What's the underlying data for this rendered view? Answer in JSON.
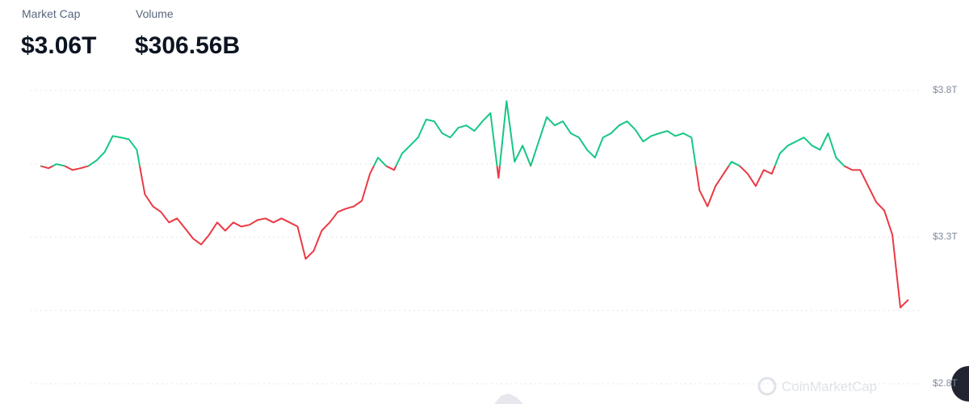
{
  "stats": [
    {
      "label": "Market Cap",
      "value": "$3.06T"
    },
    {
      "label": "Volume",
      "value": "$306.56B"
    }
  ],
  "watermark": "CoinMarketCap",
  "chart_data": {
    "type": "line",
    "values": [
      3.543,
      3.535,
      3.549,
      3.543,
      3.529,
      3.535,
      3.543,
      3.562,
      3.59,
      3.645,
      3.64,
      3.634,
      3.598,
      3.446,
      3.405,
      3.386,
      3.35,
      3.364,
      3.33,
      3.295,
      3.275,
      3.308,
      3.35,
      3.322,
      3.35,
      3.336,
      3.342,
      3.358,
      3.364,
      3.35,
      3.364,
      3.35,
      3.336,
      3.226,
      3.253,
      3.322,
      3.35,
      3.386,
      3.397,
      3.405,
      3.424,
      3.516,
      3.571,
      3.543,
      3.529,
      3.585,
      3.612,
      3.64,
      3.701,
      3.695,
      3.654,
      3.64,
      3.673,
      3.681,
      3.662,
      3.695,
      3.723,
      3.502,
      3.764,
      3.557,
      3.612,
      3.543,
      3.626,
      3.709,
      3.681,
      3.695,
      3.654,
      3.64,
      3.598,
      3.571,
      3.64,
      3.654,
      3.681,
      3.695,
      3.667,
      3.626,
      3.645,
      3.654,
      3.662,
      3.645,
      3.654,
      3.64,
      3.46,
      3.405,
      3.474,
      3.516,
      3.557,
      3.543,
      3.516,
      3.474,
      3.529,
      3.516,
      3.585,
      3.612,
      3.626,
      3.64,
      3.612,
      3.598,
      3.654,
      3.571,
      3.543,
      3.529,
      3.529,
      3.474,
      3.419,
      3.391,
      3.308,
      3.06,
      3.087
    ],
    "up_color": "#16c784",
    "down_color": "#ea3943",
    "ylim": [
      2.8,
      3.8
    ],
    "yticks": [
      {
        "value": 3.8,
        "label": "$3.8T"
      },
      {
        "value": 3.55,
        "label": null
      },
      {
        "value": 3.3,
        "label": "$3.3T"
      },
      {
        "value": 3.05,
        "label": null
      },
      {
        "value": 2.8,
        "label": "$2.8T"
      }
    ],
    "grid": true
  }
}
